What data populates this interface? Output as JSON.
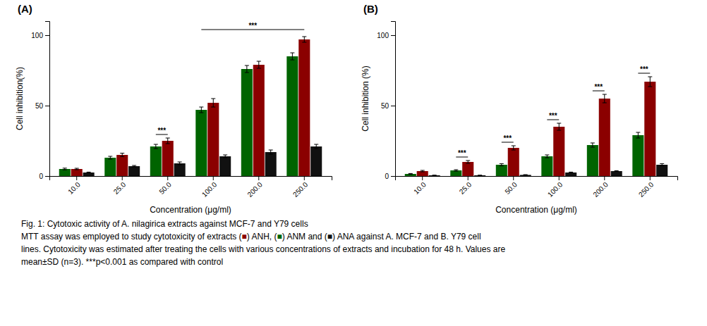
{
  "chart_data": [
    {
      "type": "bar",
      "title": "(A)",
      "x_label": "Concentration (μg/ml)",
      "y_label": "Cell inhibition(%)",
      "categories": [
        "10.0",
        "25.0",
        "50.0",
        "100.0",
        "200.0",
        "250.0"
      ],
      "series": [
        {
          "name": "ANM",
          "color": "#006400",
          "values": [
            5.0,
            13.0,
            21.0,
            47.0,
            76.0,
            85.0
          ],
          "errors": [
            0.6,
            1.0,
            1.5,
            2.0,
            2.5,
            2.5
          ]
        },
        {
          "name": "ANH",
          "color": "#8B0000",
          "values": [
            5.0,
            15.0,
            25.0,
            52.0,
            79.0,
            97.0
          ],
          "errors": [
            0.5,
            1.2,
            2.0,
            3.0,
            2.5,
            2.0
          ]
        },
        {
          "name": "ANA",
          "color": "#111111",
          "values": [
            2.5,
            7.0,
            9.0,
            14.0,
            17.0,
            21.0
          ],
          "errors": [
            0.3,
            0.5,
            1.0,
            1.0,
            1.5,
            1.5
          ]
        }
      ],
      "ylim": [
        0,
        110
      ],
      "yticks": [
        0,
        50,
        100
      ],
      "grid": false,
      "annotations": [
        {
          "text": "***",
          "y": 29.5,
          "from": [
            "50.0",
            "ANM"
          ],
          "to": [
            "50.0",
            "ANH"
          ]
        },
        {
          "text": "***",
          "y": 104,
          "from": [
            "100.0",
            "ANM"
          ],
          "to": [
            "250.0",
            "ANH"
          ]
        }
      ]
    },
    {
      "type": "bar",
      "title": "(B)",
      "x_label": "Concentration (μg/ml)",
      "y_label": "Cell inhibition (%)",
      "categories": [
        "10.0",
        "25.0",
        "50.0",
        "100.0",
        "200.0",
        "250.0"
      ],
      "series": [
        {
          "name": "ANM",
          "color": "#006400",
          "values": [
            1.5,
            4.0,
            8.0,
            14.0,
            22.0,
            29.0
          ],
          "errors": [
            0.3,
            0.5,
            0.8,
            1.0,
            1.5,
            2.0
          ]
        },
        {
          "name": "ANH",
          "color": "#8B0000",
          "values": [
            3.5,
            10.0,
            20.0,
            35.0,
            55.0,
            67.0
          ],
          "errors": [
            0.5,
            1.0,
            1.5,
            2.5,
            3.0,
            3.5
          ]
        },
        {
          "name": "ANA",
          "color": "#111111",
          "values": [
            0.5,
            0.5,
            0.8,
            2.5,
            3.5,
            8.0
          ],
          "errors": [
            0.1,
            0.1,
            0.2,
            0.3,
            0.3,
            0.8
          ]
        }
      ],
      "ylim": [
        0,
        110
      ],
      "yticks": [
        0,
        50,
        100
      ],
      "grid": false,
      "annotations": [
        {
          "text": "***",
          "y": 13.5,
          "from": [
            "25.0",
            "ANM"
          ],
          "to": [
            "25.0",
            "ANH"
          ]
        },
        {
          "text": "***",
          "y": 24,
          "from": [
            "50.0",
            "ANM"
          ],
          "to": [
            "50.0",
            "ANH"
          ]
        },
        {
          "text": "***",
          "y": 40,
          "from": [
            "100.0",
            "ANM"
          ],
          "to": [
            "100.0",
            "ANH"
          ]
        },
        {
          "text": "***",
          "y": 60.5,
          "from": [
            "200.0",
            "ANM"
          ],
          "to": [
            "200.0",
            "ANH"
          ]
        },
        {
          "text": "***",
          "y": 73,
          "from": [
            "250.0",
            "ANM"
          ],
          "to": [
            "250.0",
            "ANH"
          ]
        }
      ]
    }
  ],
  "caption": [
    [
      {
        "text": "Fig. 1: Cytotoxic activity of "
      },
      {
        "text": "A. nilagirica"
      },
      {
        "text": " extracts against MCF-7 and Y79 cells"
      }
    ],
    [
      {
        "text": "MTT assay was employed to study cytotoxicity of extracts ("
      },
      {
        "text": "■",
        "color": "#8B0000"
      },
      {
        "text": ") ANH, ("
      },
      {
        "text": "■",
        "color": "#006400"
      },
      {
        "text": ") ANM and ("
      },
      {
        "text": "■",
        "color": "#111111"
      },
      {
        "text": ") ANA against A. MCF-7 and B. Y79 cell"
      }
    ],
    [
      {
        "text": "lines. Cytotoxicity was estimated after treating the cells with various concentrations of extracts and incubation for 48 h. Values are"
      }
    ],
    [
      {
        "text": "mean±SD (n=3). ***p<0.001 as compared with control"
      }
    ]
  ]
}
